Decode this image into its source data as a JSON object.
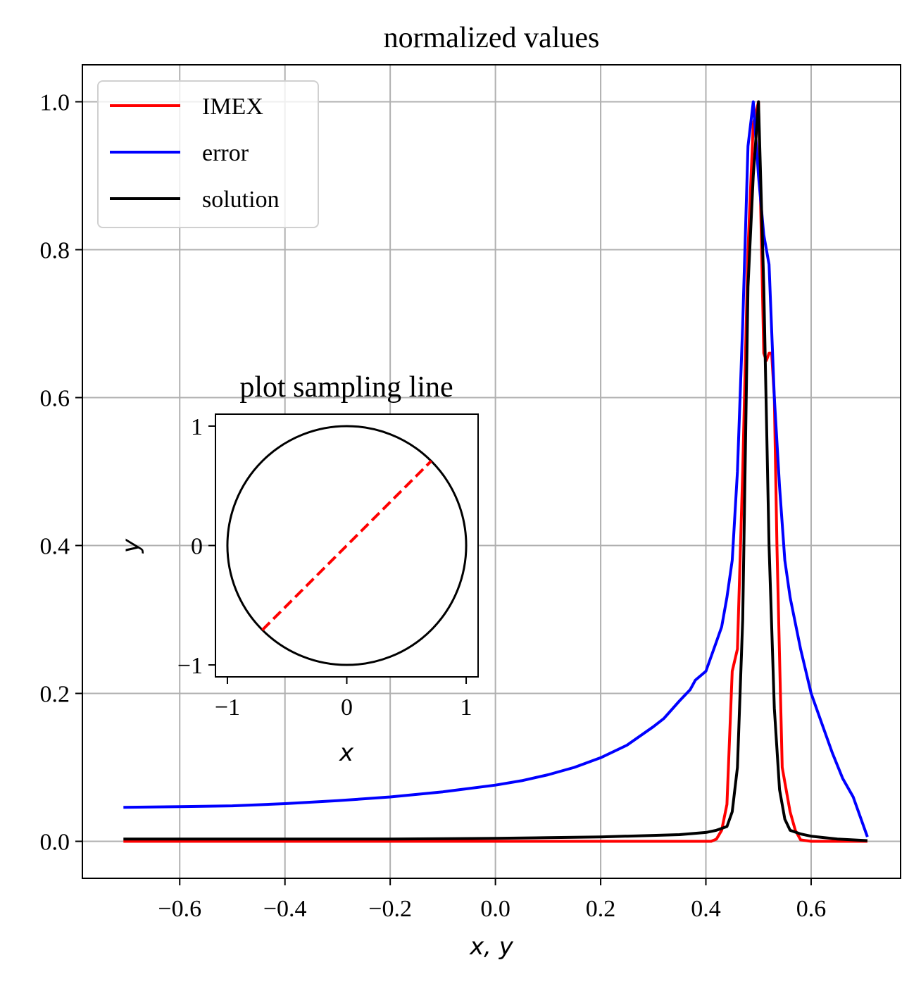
{
  "chart_data": [
    {
      "type": "line",
      "title": "normalized values",
      "xlabel": "x, y",
      "ylabel": "",
      "xlim": [
        -0.785,
        0.77
      ],
      "ylim": [
        -0.05,
        1.05
      ],
      "xticks": [
        -0.6,
        -0.4,
        -0.2,
        0.0,
        0.2,
        0.4,
        0.6
      ],
      "xtick_labels": [
        "−0.6",
        "−0.4",
        "−0.2",
        "0.0",
        "0.2",
        "0.4",
        "0.6"
      ],
      "yticks": [
        0.0,
        0.2,
        0.4,
        0.6,
        0.8,
        1.0
      ],
      "ytick_labels": [
        "0.0",
        "0.2",
        "0.4",
        "0.6",
        "0.8",
        "1.0"
      ],
      "grid": true,
      "legend": "top-left",
      "series": [
        {
          "name": "IMEX",
          "color": "#ff0000",
          "x": [
            -0.707,
            -0.4,
            -0.2,
            0.0,
            0.2,
            0.3,
            0.35,
            0.4,
            0.41,
            0.42,
            0.43,
            0.44,
            0.45,
            0.46,
            0.47,
            0.48,
            0.49,
            0.5,
            0.51,
            0.515,
            0.52,
            0.525,
            0.53,
            0.535,
            0.54,
            0.545,
            0.55,
            0.56,
            0.57,
            0.58,
            0.6,
            0.65,
            0.707
          ],
          "y": [
            0.0,
            0.0,
            0.0,
            0.0,
            0.0,
            0.0,
            0.0,
            0.0,
            0.0,
            0.003,
            0.015,
            0.05,
            0.23,
            0.26,
            0.5,
            0.8,
            0.97,
            1.0,
            0.66,
            0.65,
            0.66,
            0.66,
            0.6,
            0.4,
            0.25,
            0.1,
            0.08,
            0.04,
            0.015,
            0.002,
            0.0,
            0.0,
            0.0
          ]
        },
        {
          "name": "error",
          "color": "#0000ff",
          "x": [
            -0.707,
            -0.6,
            -0.5,
            -0.4,
            -0.3,
            -0.2,
            -0.1,
            0.0,
            0.05,
            0.1,
            0.15,
            0.2,
            0.25,
            0.3,
            0.32,
            0.35,
            0.37,
            0.38,
            0.4,
            0.41,
            0.42,
            0.43,
            0.44,
            0.45,
            0.46,
            0.47,
            0.48,
            0.49,
            0.5,
            0.51,
            0.52,
            0.53,
            0.54,
            0.55,
            0.56,
            0.58,
            0.6,
            0.62,
            0.64,
            0.66,
            0.68,
            0.707
          ],
          "y": [
            0.046,
            0.047,
            0.048,
            0.051,
            0.055,
            0.06,
            0.067,
            0.076,
            0.082,
            0.09,
            0.1,
            0.113,
            0.13,
            0.155,
            0.166,
            0.19,
            0.205,
            0.218,
            0.23,
            0.25,
            0.27,
            0.29,
            0.33,
            0.38,
            0.5,
            0.7,
            0.94,
            1.0,
            0.9,
            0.82,
            0.78,
            0.6,
            0.48,
            0.38,
            0.33,
            0.26,
            0.2,
            0.16,
            0.12,
            0.085,
            0.06,
            0.006
          ]
        },
        {
          "name": "solution",
          "color": "#000000",
          "x": [
            -0.707,
            -0.4,
            -0.2,
            0.0,
            0.1,
            0.2,
            0.3,
            0.35,
            0.4,
            0.42,
            0.44,
            0.45,
            0.46,
            0.47,
            0.48,
            0.49,
            0.5,
            0.51,
            0.52,
            0.53,
            0.54,
            0.55,
            0.56,
            0.58,
            0.6,
            0.65,
            0.707
          ],
          "y": [
            0.003,
            0.003,
            0.003,
            0.004,
            0.005,
            0.006,
            0.008,
            0.009,
            0.012,
            0.015,
            0.02,
            0.04,
            0.1,
            0.3,
            0.75,
            0.9,
            1.0,
            0.75,
            0.4,
            0.18,
            0.07,
            0.03,
            0.015,
            0.01,
            0.007,
            0.003,
            0.001
          ]
        }
      ]
    },
    {
      "type": "line",
      "title": "plot sampling line",
      "xlabel": "x",
      "ylabel": "y",
      "xlim": [
        -1.1,
        1.1
      ],
      "ylim": [
        -1.1,
        1.1
      ],
      "xticks": [
        -1,
        0,
        1
      ],
      "xtick_labels": [
        "−1",
        "0",
        "1"
      ],
      "yticks": [
        -1,
        0,
        1
      ],
      "ytick_labels": [
        "−1",
        "0",
        "1"
      ],
      "grid": false,
      "series": [
        {
          "shape": "circle",
          "center": [
            0,
            0
          ],
          "radius": 1,
          "color": "#000000",
          "linestyle": "solid"
        },
        {
          "x": [
            -0.707,
            0.707
          ],
          "y": [
            -0.707,
            0.707
          ],
          "color": "#ff0000",
          "linestyle": "dashed"
        }
      ]
    }
  ]
}
